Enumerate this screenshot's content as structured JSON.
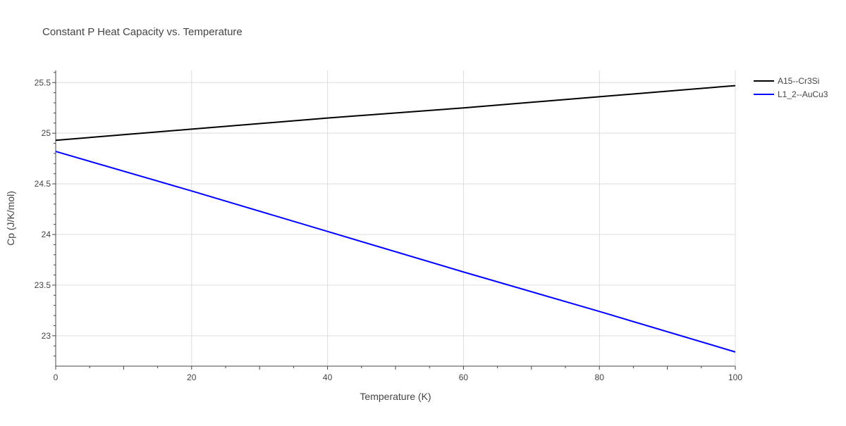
{
  "chart_data": {
    "type": "line",
    "title": "Constant P Heat Capacity vs. Temperature",
    "xlabel": "Temperature (K)",
    "ylabel": "Cp (J/K/mol)",
    "xlim": [
      0,
      100
    ],
    "ylim": [
      22.7,
      25.62
    ],
    "x_ticks": [
      0,
      20,
      40,
      60,
      80,
      100
    ],
    "x_tick_labels": [
      "0",
      "20",
      "40",
      "60",
      "80",
      "100"
    ],
    "y_ticks": [
      23,
      23.5,
      24,
      24.5,
      25,
      25.5
    ],
    "y_tick_labels": [
      "23",
      "23.5",
      "24",
      "24.5",
      "25",
      "25.5"
    ],
    "grid": true,
    "legend_position": "top-right",
    "series": [
      {
        "name": "A15--Cr3Si",
        "color": "#000000",
        "x": [
          0,
          20,
          40,
          60,
          80,
          100
        ],
        "y": [
          24.93,
          25.04,
          25.15,
          25.25,
          25.36,
          25.47
        ]
      },
      {
        "name": "L1_2--AuCu3",
        "color": "#0000ff",
        "x": [
          0,
          20,
          40,
          60,
          80,
          100
        ],
        "y": [
          24.82,
          24.43,
          24.03,
          23.63,
          23.24,
          22.84
        ]
      }
    ]
  }
}
